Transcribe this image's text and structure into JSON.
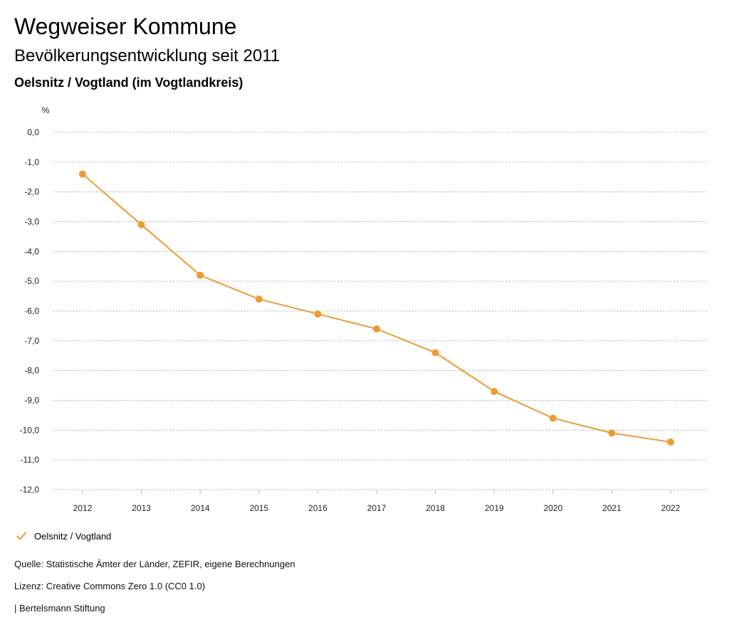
{
  "header": {
    "title": "Wegweiser Kommune",
    "subtitle": "Bevölkerungsentwicklung seit 2011",
    "region": "Oelsnitz / Vogtland (im Vogtlandkreis)"
  },
  "colors": {
    "series": "#ED9B33",
    "grid": "#9a9a9a"
  },
  "chart_data": {
    "type": "line",
    "unit_label": "%",
    "categories": [
      "2012",
      "2013",
      "2014",
      "2015",
      "2016",
      "2017",
      "2018",
      "2019",
      "2020",
      "2021",
      "2022"
    ],
    "series": [
      {
        "name": "Oelsnitz / Vogtland",
        "values": [
          -1.4,
          -3.1,
          -4.8,
          -5.6,
          -6.1,
          -6.6,
          -7.4,
          -8.7,
          -9.6,
          -10.1,
          -10.4
        ]
      }
    ],
    "ylim": [
      -12,
      0
    ],
    "yticks": [
      "0,0",
      "-1,0",
      "-2,0",
      "-3,0",
      "-4,0",
      "-5,0",
      "-6,0",
      "-7,0",
      "-8,0",
      "-9,0",
      "-10,0",
      "-11,0",
      "-12,0"
    ],
    "ytick_values": [
      0,
      -1,
      -2,
      -3,
      -4,
      -5,
      -6,
      -7,
      -8,
      -9,
      -10,
      -11,
      -12
    ],
    "grid": true,
    "legend_position": "bottom-left"
  },
  "legend": {
    "label": "Oelsnitz / Vogtland"
  },
  "footer": {
    "source": "Quelle: Statistische Ämter der Länder, ZEFIR, eigene Berechnungen",
    "license": "Lizenz: Creative Commons Zero 1.0 (CC0 1.0)",
    "publisher": "| Bertelsmann Stiftung"
  }
}
